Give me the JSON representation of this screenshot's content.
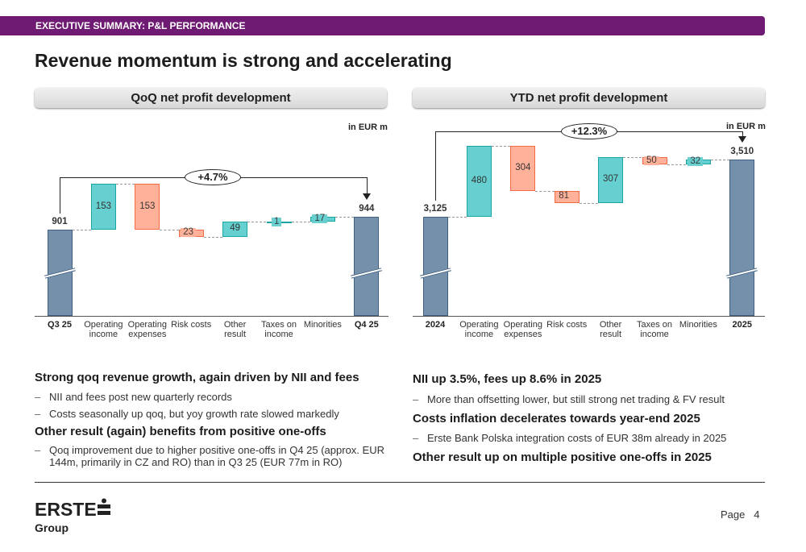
{
  "header": {
    "section": "EXECUTIVE SUMMARY: P&L PERFORMANCE",
    "title": "Revenue momentum is strong and accelerating"
  },
  "chart_data": [
    {
      "type": "waterfall",
      "title": "QoQ net profit development",
      "unit": "in EUR m",
      "change_label": "+4.7%",
      "categories": [
        "Q3 25",
        "Operating income",
        "Operating expenses",
        "Risk costs",
        "Other result",
        "Taxes on income",
        "Minorities",
        "Q4 25"
      ],
      "category_lines": [
        [
          "Q3 25"
        ],
        [
          "Operating",
          "income"
        ],
        [
          "Operating",
          "expenses"
        ],
        [
          "Risk costs"
        ],
        [
          "Other",
          "result"
        ],
        [
          "Taxes on",
          "income"
        ],
        [
          "Minorities"
        ],
        [
          "Q4 25"
        ]
      ],
      "values": [
        901,
        153,
        -153,
        -23,
        49,
        1,
        17,
        944
      ],
      "labels": [
        "901",
        "153",
        "153",
        "23",
        "49",
        "1",
        "17",
        "944"
      ],
      "kinds": [
        "total",
        "delta",
        "delta",
        "delta",
        "delta",
        "delta",
        "delta",
        "total"
      ],
      "y_axis_broken": true
    },
    {
      "type": "waterfall",
      "title": "YTD net profit development",
      "unit": "in EUR m",
      "change_label": "+12.3%",
      "categories": [
        "2024",
        "Operating income",
        "Operating expenses",
        "Risk costs",
        "Other result",
        "Taxes on income",
        "Minorities",
        "2025"
      ],
      "category_lines": [
        [
          "2024"
        ],
        [
          "Operating",
          "income"
        ],
        [
          "Operating",
          "expenses"
        ],
        [
          "Risk costs"
        ],
        [
          "Other",
          "result"
        ],
        [
          "Taxes on",
          "income"
        ],
        [
          "Minorities"
        ],
        [
          "2025"
        ]
      ],
      "values": [
        3125,
        480,
        -304,
        -81,
        307,
        -50,
        32,
        3510
      ],
      "labels": [
        "3,125",
        "480",
        "304",
        "81",
        "307",
        "50",
        "32",
        "3,510"
      ],
      "kinds": [
        "total",
        "delta",
        "delta",
        "delta",
        "delta",
        "delta",
        "delta",
        "total"
      ],
      "y_axis_broken": true
    }
  ],
  "colors": {
    "total": "#7590ab",
    "positive": "#66cfd0",
    "negative": "#ffb299",
    "brand": "#6f1a73"
  },
  "left_text": {
    "h1": "Strong qoq revenue growth, again driven by NII and fees",
    "b1": "NII and fees post new quarterly records",
    "b2": "Costs seasonally up qoq, but yoy growth rate slowed markedly",
    "h2": "Other result (again) benefits from positive one-offs",
    "b3": "Qoq improvement due to higher positive one-offs in Q4 25 (approx. EUR 144m, primarily in CZ and RO) than in Q3 25 (EUR 77m in RO)"
  },
  "right_text": {
    "h1": "NII up 3.5%, fees up 8.6% in 2025",
    "b1": "More than offsetting lower, but still strong net trading & FV result",
    "h2": "Costs inflation decelerates towards year-end 2025",
    "b2": "Erste Bank Polska integration costs of EUR 38m already in 2025",
    "h3": "Other result up on multiple positive one-offs in 2025"
  },
  "footer": {
    "logo": "ERSTE Group",
    "page_label": "Page",
    "page_number": "4"
  }
}
